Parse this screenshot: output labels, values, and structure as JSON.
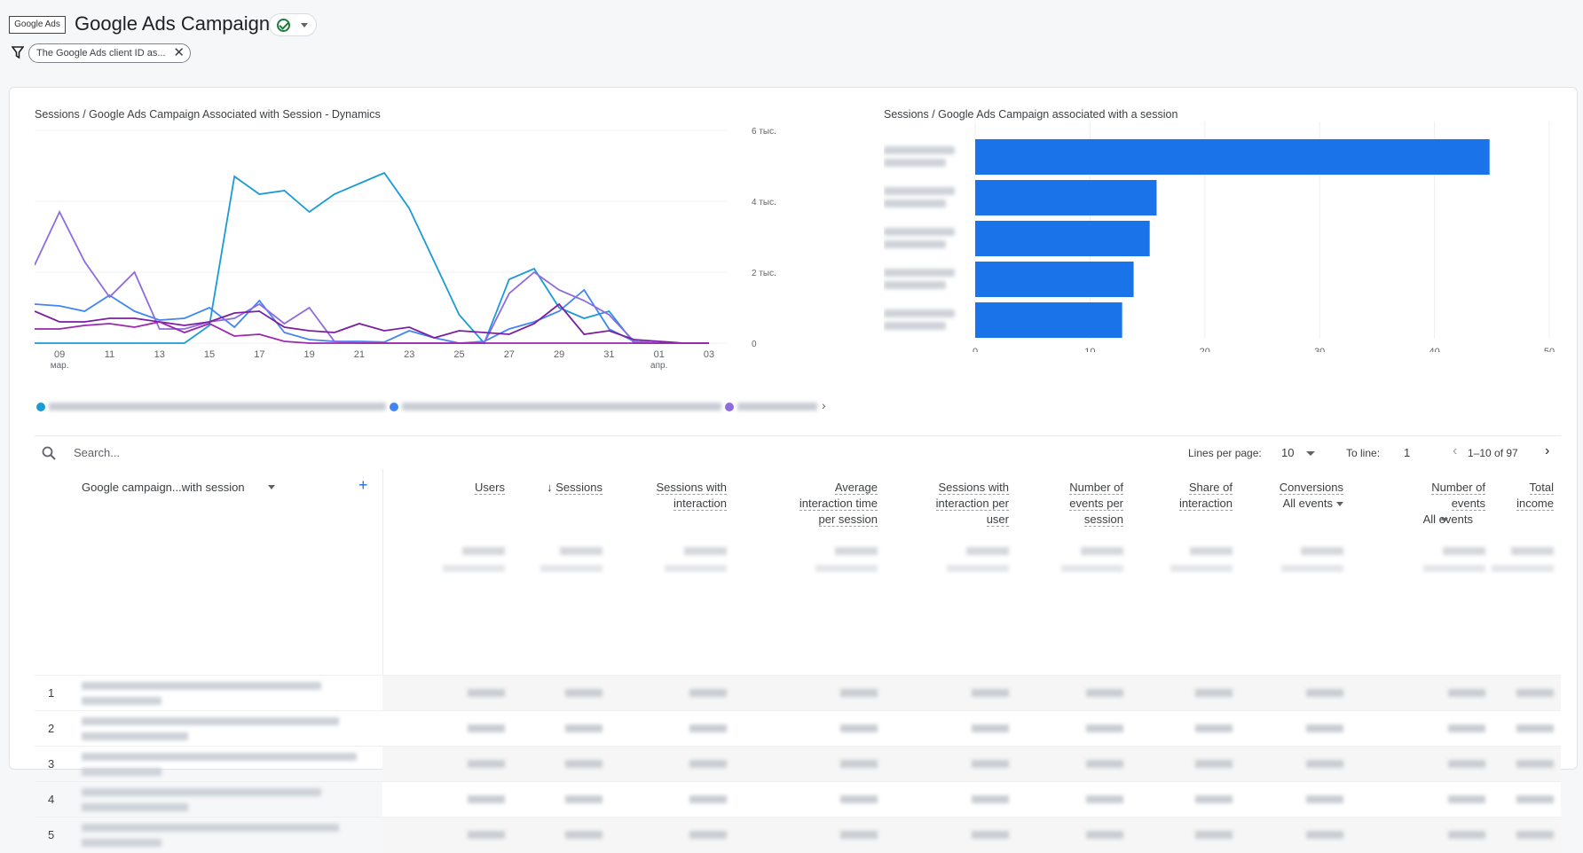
{
  "header": {
    "logo": "Google Ads",
    "title": "Google Ads Campaigns",
    "filter_chip": "The Google Ads client ID as...",
    "filter_close": "✕"
  },
  "line_chart": {
    "title": "Sessions / Google Ads Campaign Associated with Session - Dynamics",
    "y_ticks": [
      "0",
      "2 тыс.",
      "4 тыс.",
      "6 тыс."
    ],
    "x_ticks": [
      "09",
      "11",
      "13",
      "15",
      "17",
      "19",
      "21",
      "23",
      "25",
      "27",
      "29",
      "31",
      "01",
      "03"
    ],
    "x_sub_mar": "мар.",
    "x_sub_apr": "апр."
  },
  "bar_chart": {
    "title": "Sessions / Google Ads Campaign associated with a session",
    "x_ticks": [
      "0",
      "10",
      "20",
      "30",
      "40",
      "50"
    ]
  },
  "chart_data": [
    {
      "type": "line",
      "title": "Sessions / Google Ads Campaign Associated with Session - Dynamics",
      "x": [
        "08",
        "09",
        "10",
        "11",
        "12",
        "13",
        "14",
        "15",
        "16",
        "17",
        "18",
        "19",
        "20",
        "21",
        "22",
        "23",
        "24",
        "25",
        "26",
        "27",
        "28",
        "29",
        "30",
        "31",
        "01",
        "02",
        "03",
        "04"
      ],
      "ylim": [
        0,
        6000
      ],
      "series": [
        {
          "values": [
            0,
            0,
            0,
            0,
            0,
            0,
            0,
            500,
            4700,
            4200,
            4300,
            3700,
            4200,
            4500,
            4800,
            3800,
            2300,
            800,
            0,
            1800,
            2100,
            1000,
            700,
            900,
            0,
            0,
            0,
            0
          ],
          "color": "#1a9bd7"
        },
        {
          "values": [
            1100,
            1050,
            900,
            1350,
            900,
            650,
            700,
            1000,
            450,
            1200,
            300,
            100,
            50,
            50,
            30,
            350,
            150,
            0,
            50,
            400,
            600,
            900,
            1500,
            400,
            50,
            0,
            0,
            0
          ],
          "color": "#4285f4"
        },
        {
          "values": [
            2200,
            3700,
            2300,
            1300,
            2000,
            400,
            400,
            600,
            700,
            1100,
            550,
            1000,
            50,
            0,
            0,
            0,
            0,
            0,
            0,
            1400,
            2000,
            1500,
            1200,
            800,
            50,
            0,
            0,
            0
          ],
          "color": "#8e6be0"
        },
        {
          "values": [
            900,
            600,
            600,
            700,
            700,
            600,
            500,
            600,
            850,
            900,
            450,
            350,
            300,
            550,
            350,
            450,
            150,
            350,
            300,
            250,
            550,
            1100,
            250,
            350,
            100,
            50,
            0,
            0
          ],
          "color": "#7b1fa2"
        },
        {
          "values": [
            400,
            400,
            500,
            550,
            450,
            600,
            300,
            550,
            200,
            250,
            50,
            0,
            0,
            0,
            0,
            0,
            0,
            0,
            0,
            0,
            0,
            0,
            0,
            0,
            0,
            0,
            0,
            0
          ],
          "color": "#9c27b0"
        }
      ]
    },
    {
      "type": "bar",
      "title": "Sessions / Google Ads Campaign associated with a session",
      "orientation": "horizontal",
      "values": [
        44.8,
        15.8,
        15.2,
        13.8,
        12.8
      ],
      "xlim": [
        0,
        50
      ],
      "color": "#1a73e8"
    }
  ],
  "toolbar": {
    "search_placeholder": "Search...",
    "lines_per_page_label": "Lines per page:",
    "lines_per_page_value": "10",
    "to_line_label": "To line:",
    "to_line_value": "1",
    "pagination": "1–10 of 97"
  },
  "table": {
    "dimension_header": "Google campaign...with session",
    "headers": {
      "users": "Users",
      "sessions": "Sessions",
      "swi1": "Sessions with",
      "swi2": "interaction",
      "ait1": "Average",
      "ait2": "interaction time",
      "ait3": "per session",
      "swipu1": "Sessions with",
      "swipu2": "interaction per",
      "swipu3": "user",
      "neps1": "Number of",
      "neps2": "events per",
      "neps3": "session",
      "soi1": "Share of",
      "soi2": "interaction",
      "conv": "Conversions",
      "conv_sub": "All events",
      "noe1": "Number of",
      "noe2": "events",
      "noe_sub": "All events",
      "ti1": "Total",
      "ti2": "income"
    },
    "row_indexes": [
      "1",
      "2",
      "3",
      "4",
      "5"
    ]
  }
}
